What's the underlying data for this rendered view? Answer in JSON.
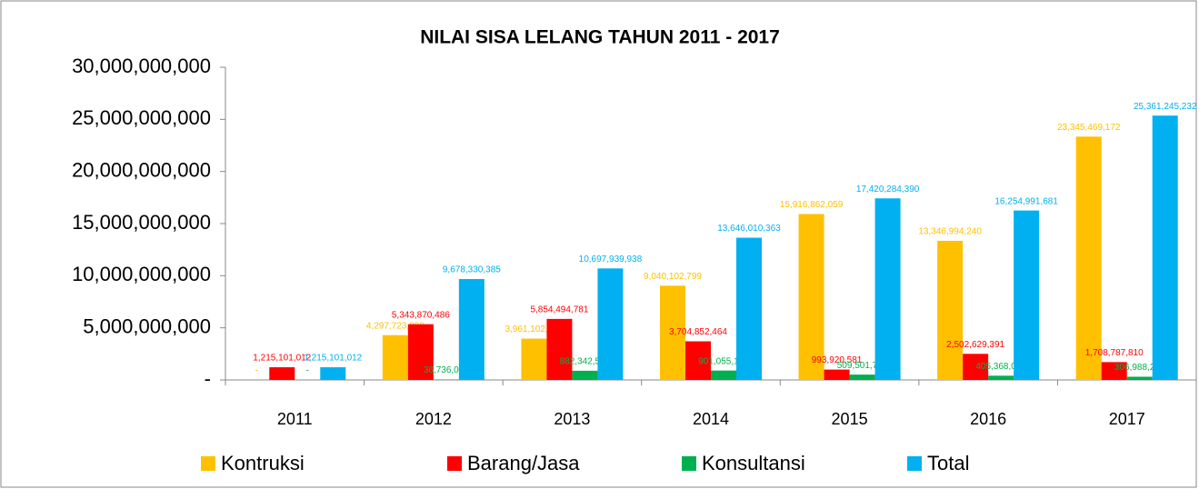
{
  "chart_data": {
    "type": "bar",
    "title": "NILAI SISA LELANG TAHUN 2011 - 2017",
    "categories": [
      "2011",
      "2012",
      "2013",
      "2014",
      "2015",
      "2016",
      "2017"
    ],
    "series": [
      {
        "name": "Kontruksi",
        "color": "#ffc000",
        "values": [
          0,
          4297723899,
          3961102657,
          9040102799,
          15916862059,
          13346994240,
          23345469172
        ],
        "value_labels": [
          "-",
          "4,297,723,899",
          "3,961,102,657",
          "9,040,102,799",
          "15,916,862,059",
          "13,346,994,240",
          "23,345,469,172"
        ]
      },
      {
        "name": "Barang/Jasa",
        "color": "#ff0000",
        "values": [
          1215101012,
          5343870486,
          5854494781,
          3704852464,
          993920581,
          2502629391,
          1708787810
        ],
        "value_labels": [
          "1,215,101,012",
          "5,343,870,486",
          "5,854,494,781",
          "3,704,852,464",
          "993,920,581",
          "2,502,629,391",
          "1,708,787,810"
        ]
      },
      {
        "name": "Konsultansi",
        "color": "#00b050",
        "values": [
          0,
          36736000,
          882342500,
          901055100,
          509501750,
          405368050,
          306988250
        ],
        "value_labels": [
          "-",
          "36,736,000",
          "882,342,500",
          "901,055,100",
          "509,501,750",
          "405,368,050",
          "306,988,250"
        ]
      },
      {
        "name": "Total",
        "color": "#00b0f0",
        "values": [
          1215101012,
          9678330385,
          10697939938,
          13646010363,
          17420284390,
          16254991681,
          25361245232
        ],
        "value_labels": [
          "1,215,101,012",
          "9,678,330,385",
          "10,697,939,938",
          "13,646,010,363",
          "17,420,284,390",
          "16,254,991,681",
          "25,361,245,232"
        ]
      }
    ],
    "ylim": [
      0,
      30000000000
    ],
    "yticks": [
      {
        "value": 0,
        "label": "-"
      },
      {
        "value": 5000000000,
        "label": "5,000,000,000"
      },
      {
        "value": 10000000000,
        "label": "10,000,000,000"
      },
      {
        "value": 15000000000,
        "label": "15,000,000,000"
      },
      {
        "value": 20000000000,
        "label": "20,000,000,000"
      },
      {
        "value": 25000000000,
        "label": "25,000,000,000"
      },
      {
        "value": 30000000000,
        "label": "30,000,000,000"
      }
    ],
    "grid": false,
    "legend": "bottom"
  }
}
